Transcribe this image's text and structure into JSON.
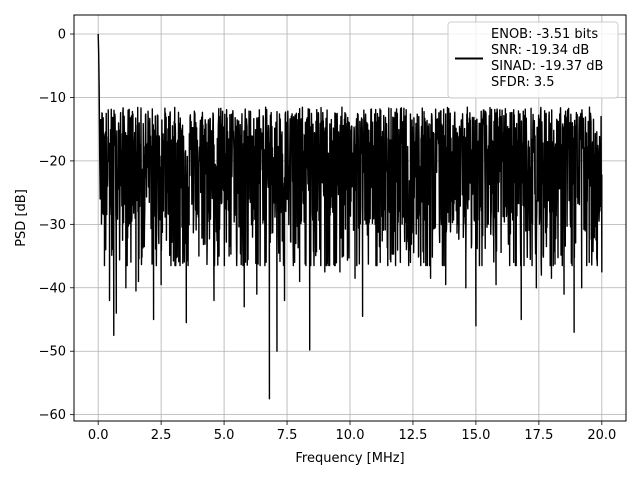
{
  "chart_data": {
    "type": "line",
    "title": "",
    "xlabel": "Frequency [MHz]",
    "ylabel": "PSD [dB]",
    "xlim": [
      -0.96,
      20.96
    ],
    "ylim": [
      -61,
      3
    ],
    "xticks": [
      0.0,
      2.5,
      5.0,
      7.5,
      10.0,
      12.5,
      15.0,
      17.5,
      20.0
    ],
    "xtick_labels": [
      "0.0",
      "2.5",
      "5.0",
      "7.5",
      "10.0",
      "12.5",
      "15.0",
      "17.5",
      "20.0"
    ],
    "yticks": [
      0,
      -10,
      -20,
      -30,
      -40,
      -50,
      -60
    ],
    "ytick_labels": [
      "0",
      "−10",
      "−20",
      "−30",
      "−40",
      "−50",
      "−60"
    ],
    "grid": true,
    "legend_position": "top-right",
    "series": [
      {
        "line_color": "#000000",
        "legend_lines": [
          "ENOB: -3.51 bits",
          "SNR: -19.34 dB",
          "SINAD: -19.37 dB",
          "SFDR: 3.5"
        ],
        "noise_floor_approx_db": -20,
        "noise_max_approx_db": -10,
        "points": [
          [
            0.0,
            0.0
          ],
          [
            0.02,
            -3.0
          ],
          [
            0.04,
            -8.5
          ],
          [
            0.06,
            -19.0
          ],
          [
            0.08,
            -26.0
          ],
          [
            0.1,
            -13.5
          ],
          [
            0.13,
            -23.0
          ],
          [
            0.16,
            -12.5
          ],
          [
            0.2,
            -26.0
          ],
          [
            0.25,
            -18.0
          ],
          [
            0.3,
            -34.0
          ],
          [
            0.4,
            -16.0
          ],
          [
            0.45,
            -42.0
          ],
          [
            0.55,
            -14.0
          ],
          [
            0.62,
            -47.5
          ],
          [
            0.72,
            -44.0
          ],
          [
            1.1,
            -40.0
          ],
          [
            1.5,
            -40.5
          ],
          [
            1.6,
            -39.0
          ],
          [
            2.2,
            -45.0
          ],
          [
            2.5,
            -39.5
          ],
          [
            3.5,
            -45.5
          ],
          [
            4.0,
            -35.0
          ],
          [
            4.6,
            -42.0
          ],
          [
            5.2,
            -35.0
          ],
          [
            5.8,
            -43.0
          ],
          [
            6.3,
            -41.0
          ],
          [
            6.8,
            -57.5
          ],
          [
            7.1,
            -50.0
          ],
          [
            7.4,
            -42.0
          ],
          [
            7.8,
            -36.0
          ],
          [
            8.0,
            -39.0
          ],
          [
            8.4,
            -49.8
          ],
          [
            9.0,
            -37.5
          ],
          [
            9.6,
            -37.5
          ],
          [
            10.2,
            -38.5
          ],
          [
            10.5,
            -44.5
          ],
          [
            11.2,
            -36.0
          ],
          [
            12.0,
            -36.0
          ],
          [
            12.4,
            -36.0
          ],
          [
            12.8,
            -35.0
          ],
          [
            13.2,
            -38.5
          ],
          [
            13.8,
            -39.5
          ],
          [
            14.6,
            -40.0
          ],
          [
            15.0,
            -46.0
          ],
          [
            15.8,
            -39.5
          ],
          [
            16.5,
            -36.0
          ],
          [
            16.8,
            -45.0
          ],
          [
            17.4,
            -40.0
          ],
          [
            17.6,
            -38.0
          ],
          [
            18.0,
            -38.5
          ],
          [
            18.5,
            -41.0
          ],
          [
            18.9,
            -47.0
          ],
          [
            19.2,
            -40.0
          ],
          [
            19.5,
            -36.0
          ],
          [
            19.8,
            -35.5
          ],
          [
            20.0,
            -37.5
          ]
        ]
      }
    ]
  }
}
